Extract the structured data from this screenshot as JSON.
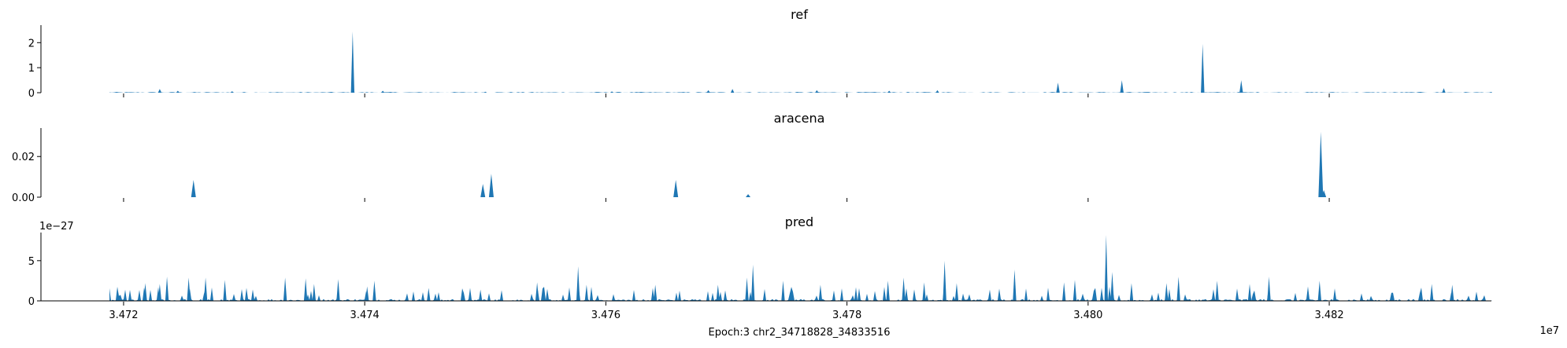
{
  "chart_data": [
    {
      "type": "area",
      "title": "ref",
      "xlim": [
        34718828,
        34833516
      ],
      "ylim": [
        0,
        2.7
      ],
      "yticks": [
        0,
        1,
        2
      ],
      "ytick_labels": [
        "0",
        "1",
        "2"
      ],
      "color": "#1f77b4",
      "x": [
        34723000,
        34724500,
        34729000,
        34739000,
        34741500,
        34750000,
        34760500,
        34768500,
        34770500,
        34777500,
        34783500,
        34787500,
        34797500,
        34802800,
        34809500,
        34812700,
        34829500
      ],
      "y": [
        0.15,
        0.08,
        0.06,
        2.45,
        0.08,
        0.04,
        0.05,
        0.1,
        0.15,
        0.1,
        0.08,
        0.1,
        0.4,
        0.5,
        1.95,
        0.5,
        0.18
      ],
      "baseline_noise": 0.03
    },
    {
      "type": "area",
      "title": "aracena",
      "xlim": [
        34718828,
        34833516
      ],
      "ylim": [
        0,
        0.034
      ],
      "yticks": [
        0,
        0.02
      ],
      "ytick_labels": [
        "0.00",
        "0.02"
      ],
      "color": "#1f77b4",
      "x": [
        34725800,
        34749800,
        34750500,
        34765800,
        34771800,
        34819300,
        34819550
      ],
      "y": [
        0.0085,
        0.0065,
        0.0115,
        0.0085,
        0.0015,
        0.0322,
        0.0035
      ],
      "baseline_noise": 0
    },
    {
      "type": "area",
      "title": "pred",
      "xlim": [
        34718828,
        34833516
      ],
      "ylim": [
        0,
        8.5
      ],
      "yticks": [
        0,
        5
      ],
      "ytick_labels": [
        "0",
        "5"
      ],
      "y_offset_label": "1e−27",
      "color": "#1f77b4",
      "x": [
        34721800,
        34723000,
        34723600,
        34725400,
        34726800,
        34728400,
        34733400,
        34735100,
        34735800,
        34737800,
        34740200,
        34740800,
        34745300,
        34749600,
        34754300,
        34757700,
        34758400,
        34764100,
        34769300,
        34771700,
        34772200,
        34774700,
        34777800,
        34783400,
        34784700,
        34786400,
        34788100,
        34789100,
        34793900,
        34798000,
        34798900,
        34801500,
        34802000,
        34803600,
        34806500,
        34807500,
        34810700,
        34813400,
        34815000,
        34819200,
        34828500,
        34830200
      ],
      "y": [
        2.2,
        2.1,
        3.0,
        2.9,
        2.9,
        2.6,
        2.9,
        2.8,
        2.1,
        2.7,
        1.8,
        2.5,
        1.6,
        1.4,
        2.3,
        4.3,
        2.0,
        2.0,
        2.0,
        2.9,
        4.5,
        2.5,
        2.0,
        2.5,
        2.9,
        2.3,
        5.0,
        2.2,
        3.9,
        2.3,
        2.6,
        8.2,
        3.6,
        2.2,
        2.2,
        3.0,
        2.5,
        2.1,
        3.0,
        2.5,
        2.1,
        2.0
      ],
      "baseline_noise": 0.3
    }
  ],
  "xaxis": {
    "ticks": [
      34720000,
      34740000,
      34760000,
      34780000,
      34800000,
      34820000
    ],
    "tick_labels": [
      "3.472",
      "3.474",
      "3.476",
      "3.478",
      "3.480",
      "3.482"
    ],
    "offset_label": "1e7",
    "xlabel": "Epoch:3 chr2_34718828_34833516"
  }
}
